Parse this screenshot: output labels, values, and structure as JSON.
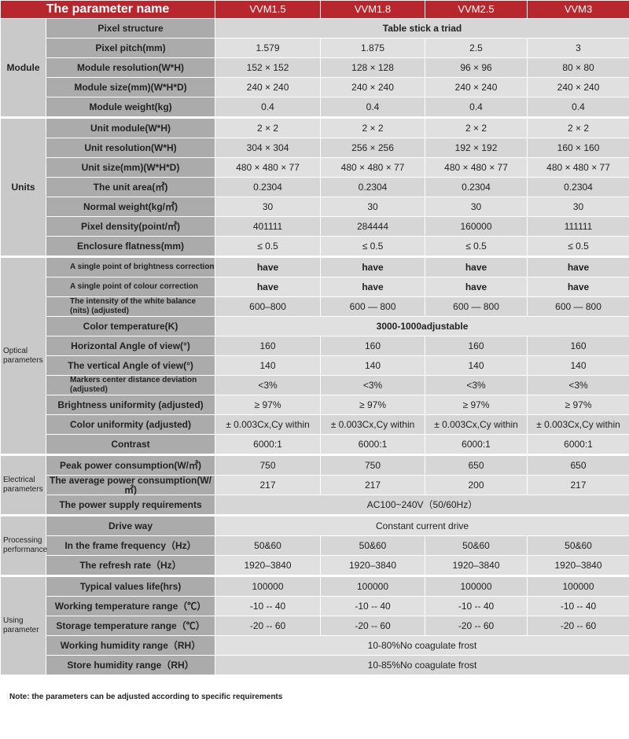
{
  "header": {
    "param_name": "The parameter name",
    "models": [
      "VVM1.5",
      "VVM1.8",
      "VVM2.5",
      "VVM3"
    ]
  },
  "groups": [
    {
      "name": "Module",
      "rows": [
        {
          "param": "Pixel structure",
          "span": "Table stick a triad"
        },
        {
          "param": "Pixel pitch(mm)",
          "values": [
            "1.579",
            "1.875",
            "2.5",
            "3"
          ]
        },
        {
          "param": "Module resolution(W*H)",
          "values": [
            "152 × 152",
            "128 × 128",
            "96 × 96",
            "80 × 80"
          ]
        },
        {
          "param": "Module size(mm)(W*H*D)",
          "values": [
            "240 × 240",
            "240 × 240",
            "240 × 240",
            "240 × 240"
          ]
        },
        {
          "param": "Module weight(kg)",
          "values": [
            "0.4",
            "0.4",
            "0.4",
            "0.4"
          ]
        }
      ]
    },
    {
      "name": "Units",
      "rows": [
        {
          "param": "Unit module(W*H)",
          "values": [
            "2 × 2",
            "2 × 2",
            "2 × 2",
            "2 × 2"
          ]
        },
        {
          "param": "Unit resolution(W*H)",
          "values": [
            "304 × 304",
            "256 × 256",
            "192 × 192",
            "160 × 160"
          ]
        },
        {
          "param": "Unit size(mm)(W*H*D)",
          "values": [
            "480 × 480 × 77",
            "480 × 480 × 77",
            "480 × 480 × 77",
            "480 × 480 × 77"
          ]
        },
        {
          "param": "The unit area(㎡)",
          "values": [
            "0.2304",
            "0.2304",
            "0.2304",
            "0.2304"
          ]
        },
        {
          "param": "Normal weight(kg/㎡)",
          "values": [
            "30",
            "30",
            "30",
            "30"
          ]
        },
        {
          "param": "Pixel density(point/㎡)",
          "values": [
            "401111",
            "284444",
            "160000",
            "111111"
          ]
        },
        {
          "param": "Enclosure flatness(mm)",
          "values": [
            "≤ 0.5",
            "≤ 0.5",
            "≤ 0.5",
            "≤ 0.5"
          ]
        }
      ]
    },
    {
      "name": "Optical parameters",
      "rows": [
        {
          "param": "A single point of brightness correction",
          "small": true,
          "bold": true,
          "values": [
            "have",
            "have",
            "have",
            "have"
          ]
        },
        {
          "param": "A single point of colour correction",
          "small": true,
          "bold": true,
          "values": [
            "have",
            "have",
            "have",
            "have"
          ]
        },
        {
          "param": "The intensity of the white balance (nits) (adjusted)",
          "small": true,
          "values": [
            "600–800",
            "600 — 800",
            "600 — 800",
            "600 — 800"
          ]
        },
        {
          "param": "Color temperature(K)",
          "span": "3000-1000adjustable"
        },
        {
          "param": "Horizontal Angle of view(°)",
          "values": [
            "160",
            "160",
            "160",
            "160"
          ]
        },
        {
          "param": "The vertical Angle of view(°)",
          "values": [
            "140",
            "140",
            "140",
            "140"
          ]
        },
        {
          "param": "Markers center distance deviation (adjusted)",
          "small": true,
          "values": [
            "<3%",
            "<3%",
            "<3%",
            "<3%"
          ]
        },
        {
          "param": "Brightness uniformity (adjusted)",
          "values": [
            "≥ 97%",
            "≥ 97%",
            "≥ 97%",
            "≥ 97%"
          ]
        },
        {
          "param": "Color uniformity (adjusted)",
          "values": [
            "± 0.003Cx,Cy within",
            "± 0.003Cx,Cy within",
            "± 0.003Cx,Cy within",
            "± 0.003Cx,Cy within"
          ]
        },
        {
          "param": "Contrast",
          "values": [
            "6000:1",
            "6000:1",
            "6000:1",
            "6000:1"
          ]
        }
      ]
    },
    {
      "name": "Electrical parameters",
      "rows": [
        {
          "param": "Peak power consumption(W/㎡)",
          "values": [
            "750",
            "750",
            "650",
            "650"
          ]
        },
        {
          "param": "The average power consumption(W/㎡)",
          "values": [
            "217",
            "217",
            "200",
            "217"
          ]
        },
        {
          "param": "The power supply requirements",
          "span": "AC100~240V（50/60Hz）",
          "plain": true
        }
      ]
    },
    {
      "name": "Processing performance",
      "rows": [
        {
          "param": "Drive way",
          "span": "Constant current drive",
          "plain": true
        },
        {
          "param": "In the frame frequency（Hz）",
          "values": [
            "50&60",
            "50&60",
            "50&60",
            "50&60"
          ]
        },
        {
          "param": "The refresh rate（Hz）",
          "values": [
            "1920–3840",
            "1920–3840",
            "1920–3840",
            "1920–3840"
          ]
        }
      ]
    },
    {
      "name": "Using parameter",
      "rows": [
        {
          "param": "Typical values life(hrs)",
          "values": [
            "100000",
            "100000",
            "100000",
            "100000"
          ]
        },
        {
          "param": "Working temperature range（℃）",
          "values": [
            "-10 -- 40",
            "-10 -- 40",
            "-10 -- 40",
            "-10 -- 40"
          ]
        },
        {
          "param": "Storage temperature range（℃）",
          "values": [
            "-20 -- 60",
            "-20 -- 60",
            "-20 -- 60",
            "-20 -- 60"
          ]
        },
        {
          "param": "Working humidity range（RH）",
          "span": "10-80%No coagulate frost",
          "plain": true
        },
        {
          "param": "Store humidity range（RH）",
          "span": "10-85%No coagulate frost",
          "plain": true
        }
      ]
    }
  ],
  "note": "Note: the parameters can be adjusted according to specific requirements"
}
